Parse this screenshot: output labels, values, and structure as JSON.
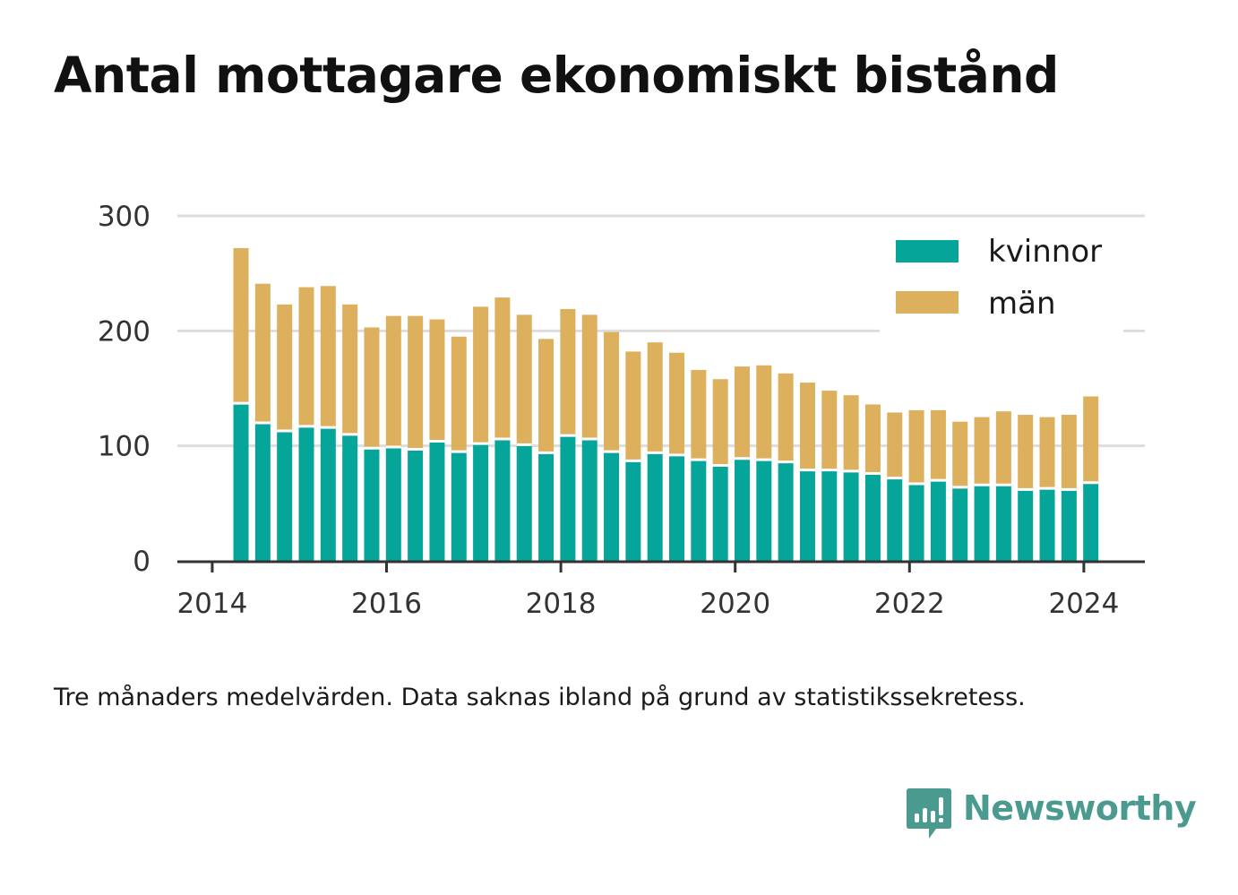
{
  "title": "Antal mottagare ekonomiskt bistånd",
  "footnote": "Tre månaders medelvärden. Data saknas ibland på grund av statistikssekretess.",
  "brand": {
    "name": "Newsworthy",
    "icon": "newsworthy-logo-icon",
    "color": "#4a9a90"
  },
  "colors": {
    "kvinnor": "#05a599",
    "man": "#dcb05c",
    "grid": "#dddddd",
    "axis": "#333333"
  },
  "chart_data": {
    "type": "bar",
    "stacked": true,
    "x_unit": "year",
    "xlim": [
      2013.6,
      2024.7
    ],
    "ylim": [
      0,
      300
    ],
    "yticks": [
      0,
      100,
      200,
      300
    ],
    "ytick_labels": [
      "0",
      "100",
      "200",
      "300"
    ],
    "xticks": [
      2014,
      2016,
      2018,
      2020,
      2022,
      2024
    ],
    "xtick_labels": [
      "2014",
      "2016",
      "2018",
      "2020",
      "2022",
      "2024"
    ],
    "grid": true,
    "legend_position": "top-right",
    "x": [
      2014.33,
      2014.58,
      2014.83,
      2015.08,
      2015.33,
      2015.58,
      2015.83,
      2016.08,
      2016.33,
      2016.58,
      2016.83,
      2017.08,
      2017.33,
      2017.58,
      2017.83,
      2018.08,
      2018.33,
      2018.58,
      2018.83,
      2019.08,
      2019.33,
      2019.58,
      2019.83,
      2020.08,
      2020.33,
      2020.58,
      2020.83,
      2021.08,
      2021.33,
      2021.58,
      2021.83,
      2022.08,
      2022.33,
      2022.58,
      2022.83,
      2023.08,
      2023.33,
      2023.58,
      2023.83,
      2024.08
    ],
    "series": [
      {
        "name": "kvinnor",
        "color": "#05a599",
        "values": [
          137,
          120,
          113,
          117,
          116,
          110,
          98,
          99,
          97,
          104,
          95,
          102,
          106,
          101,
          94,
          109,
          106,
          95,
          87,
          94,
          92,
          88,
          83,
          89,
          88,
          86,
          79,
          79,
          78,
          76,
          72,
          67,
          70,
          64,
          66,
          66,
          62,
          63,
          62,
          68
        ]
      },
      {
        "name": "män",
        "color": "#dcb05c",
        "values": [
          135,
          121,
          110,
          121,
          123,
          113,
          105,
          114,
          116,
          106,
          100,
          119,
          123,
          113,
          99,
          110,
          108,
          104,
          95,
          96,
          89,
          78,
          75,
          80,
          82,
          77,
          76,
          69,
          66,
          60,
          57,
          64,
          61,
          57,
          59,
          64,
          65,
          62,
          65,
          75
        ]
      }
    ]
  }
}
